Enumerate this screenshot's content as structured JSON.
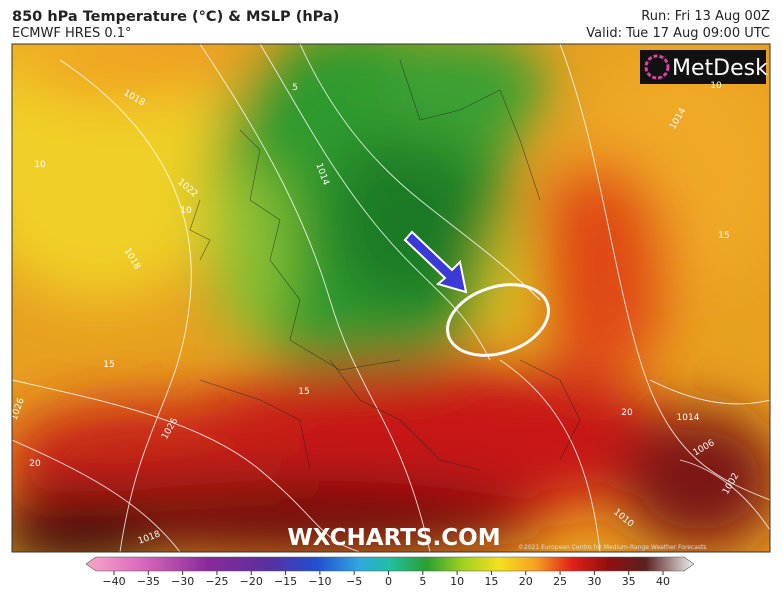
{
  "header": {
    "title": "850 hPa Temperature (°C) & MSLP (hPa)",
    "subtitle": "ECMWF HRES 0.1°",
    "run": "Run: Fri 13 Aug 00Z",
    "valid": "Valid: Tue 17 Aug 09:00 UTC"
  },
  "map": {
    "logo": "MetDesk",
    "watermark": "WXCHARTS.COM",
    "copyright": "©2021 European Centre for Medium-Range Weather Forecasts",
    "contour_labels": [
      "1018",
      "10",
      "1022",
      "10",
      "1018",
      "1014",
      "5",
      "10",
      "1014",
      "15",
      "15",
      "15",
      "1026",
      "1026",
      "20",
      "20",
      "1014",
      "1006",
      "1002",
      "1010",
      "1018"
    ]
  },
  "colorbar": {
    "ticks": [
      "−40",
      "−35",
      "−30",
      "−25",
      "−20",
      "−15",
      "−10",
      "−5",
      "0",
      "5",
      "10",
      "15",
      "20",
      "25",
      "30",
      "35",
      "40"
    ]
  }
}
